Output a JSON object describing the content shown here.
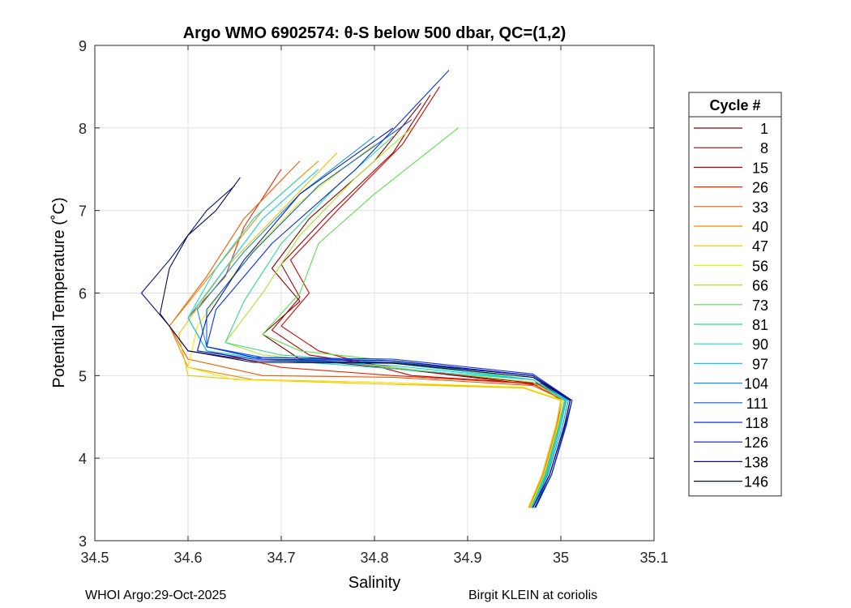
{
  "chart_data": {
    "type": "line",
    "title": "Argo WMO 6902574: θ-S below 500 dbar,  QC=(1,2)",
    "xlabel": "Salinity",
    "ylabel": "Potential Temperature (˚C)",
    "xlim": [
      34.5,
      35.1
    ],
    "ylim": [
      3,
      9
    ],
    "xticks": [
      "34.5",
      "34.6",
      "34.7",
      "34.8",
      "34.9",
      "35",
      "35.1"
    ],
    "yticks": [
      "3",
      "4",
      "5",
      "6",
      "7",
      "8",
      "9"
    ],
    "grid": true,
    "legend": {
      "title": "Cycle #",
      "placement": "outside-right",
      "entries": [
        {
          "label": "1",
          "color": "#800000"
        },
        {
          "label": "8",
          "color": "#a50000"
        },
        {
          "label": "15",
          "color": "#cc0000"
        },
        {
          "label": "26",
          "color": "#e62a00"
        },
        {
          "label": "33",
          "color": "#ef5a00"
        },
        {
          "label": "40",
          "color": "#f08a00"
        },
        {
          "label": "47",
          "color": "#f2c200"
        },
        {
          "label": "56",
          "color": "#f5eb00"
        },
        {
          "label": "66",
          "color": "#a8e62e"
        },
        {
          "label": "73",
          "color": "#5cdc4a"
        },
        {
          "label": "81",
          "color": "#2ed88a"
        },
        {
          "label": "90",
          "color": "#1ed6c8"
        },
        {
          "label": "97",
          "color": "#18c8ee"
        },
        {
          "label": "104",
          "color": "#1090dc"
        },
        {
          "label": "111",
          "color": "#0a5ed6"
        },
        {
          "label": "118",
          "color": "#0a2ee0"
        },
        {
          "label": "126",
          "color": "#0a14b8"
        },
        {
          "label": "138",
          "color": "#08107a"
        },
        {
          "label": "146",
          "color": "#060a4a"
        }
      ]
    },
    "series": [
      {
        "name": "1",
        "color": "#800000",
        "x": [
          34.97,
          34.985,
          35.0,
          35.005,
          34.98,
          34.85,
          34.72,
          34.68,
          34.72,
          34.69,
          34.73,
          34.8,
          34.85
        ],
        "y": [
          3.4,
          3.8,
          4.4,
          4.7,
          4.9,
          5.05,
          5.2,
          5.5,
          5.9,
          6.3,
          6.9,
          7.6,
          8.3
        ]
      },
      {
        "name": "8",
        "color": "#a50000",
        "x": [
          34.968,
          34.983,
          34.998,
          35.004,
          34.978,
          34.85,
          34.73,
          34.69,
          34.72,
          34.7,
          34.75,
          34.82,
          34.86
        ],
        "y": [
          3.4,
          3.8,
          4.4,
          4.7,
          4.88,
          5.05,
          5.25,
          5.55,
          5.95,
          6.35,
          6.95,
          7.7,
          8.4
        ]
      },
      {
        "name": "15",
        "color": "#cc0000",
        "x": [
          34.966,
          34.98,
          34.995,
          35.0,
          34.975,
          34.84,
          34.74,
          34.7,
          34.73,
          34.71,
          34.76,
          34.83,
          34.87
        ],
        "y": [
          3.4,
          3.8,
          4.4,
          4.7,
          4.9,
          5.0,
          5.3,
          5.6,
          6.0,
          6.4,
          7.0,
          7.8,
          8.5
        ]
      },
      {
        "name": "26",
        "color": "#e62a00",
        "x": [
          34.967,
          34.982,
          34.996,
          35.002,
          34.97,
          34.82,
          34.7,
          34.62,
          34.6,
          34.64,
          34.66,
          34.7
        ],
        "y": [
          3.4,
          3.8,
          4.4,
          4.7,
          4.9,
          5.0,
          5.1,
          5.3,
          5.7,
          6.2,
          6.8,
          7.5
        ]
      },
      {
        "name": "33",
        "color": "#ef5a00",
        "x": [
          34.968,
          34.984,
          34.998,
          35.004,
          34.97,
          34.82,
          34.68,
          34.6,
          34.58,
          34.62,
          34.66,
          34.72
        ],
        "y": [
          3.4,
          3.8,
          4.4,
          4.7,
          4.88,
          4.98,
          5.0,
          5.2,
          5.6,
          6.2,
          6.9,
          7.6
        ]
      },
      {
        "name": "40",
        "color": "#f08a00",
        "x": [
          34.966,
          34.981,
          34.996,
          35.0,
          34.96,
          34.8,
          34.67,
          34.6,
          34.58,
          34.63,
          34.68,
          34.74
        ],
        "y": [
          3.4,
          3.8,
          4.4,
          4.7,
          4.85,
          4.92,
          4.95,
          5.1,
          5.6,
          6.3,
          7.0,
          7.6
        ]
      },
      {
        "name": "47",
        "color": "#f2c200",
        "x": [
          34.965,
          34.98,
          34.995,
          35.0,
          34.96,
          34.8,
          34.66,
          34.6,
          34.59,
          34.64,
          34.7,
          34.76
        ],
        "y": [
          3.4,
          3.8,
          4.4,
          4.7,
          4.85,
          4.9,
          4.95,
          5.0,
          5.5,
          6.3,
          7.0,
          7.7
        ]
      },
      {
        "name": "56",
        "color": "#f5eb00",
        "x": [
          34.967,
          34.982,
          34.997,
          35.002,
          34.96,
          34.8,
          34.65,
          34.6,
          34.61,
          34.66,
          34.72,
          34.8
        ],
        "y": [
          3.4,
          3.8,
          4.4,
          4.7,
          4.86,
          4.92,
          4.95,
          5.1,
          5.6,
          6.4,
          7.1,
          7.8
        ]
      },
      {
        "name": "66",
        "color": "#a8e62e",
        "x": [
          34.968,
          34.984,
          34.999,
          35.004,
          34.97,
          34.82,
          34.68,
          34.64,
          34.68,
          34.72,
          34.78,
          34.84
        ],
        "y": [
          3.4,
          3.8,
          4.4,
          4.7,
          4.92,
          5.1,
          5.25,
          5.4,
          6.0,
          6.7,
          7.4,
          8.0
        ]
      },
      {
        "name": "73",
        "color": "#5cdc4a",
        "x": [
          34.97,
          34.985,
          35.0,
          35.006,
          34.97,
          34.84,
          34.72,
          34.68,
          34.72,
          34.74,
          34.8,
          34.89
        ],
        "y": [
          3.4,
          3.8,
          4.4,
          4.7,
          4.95,
          5.15,
          5.3,
          5.5,
          6.0,
          6.6,
          7.2,
          8.0
        ]
      },
      {
        "name": "81",
        "color": "#2ed88a",
        "x": [
          34.969,
          34.984,
          34.999,
          35.005,
          34.97,
          34.82,
          34.7,
          34.64,
          34.66,
          34.7,
          34.76,
          34.82
        ],
        "y": [
          3.4,
          3.8,
          4.4,
          4.7,
          4.95,
          5.15,
          5.25,
          5.4,
          5.9,
          6.6,
          7.3,
          7.9
        ]
      },
      {
        "name": "90",
        "color": "#1ed6c8",
        "x": [
          34.968,
          34.983,
          34.998,
          35.004,
          34.97,
          34.8,
          34.68,
          34.62,
          34.6,
          34.63,
          34.67,
          34.72
        ],
        "y": [
          3.4,
          3.8,
          4.4,
          4.7,
          4.95,
          5.1,
          5.2,
          5.3,
          5.7,
          6.3,
          6.9,
          7.4
        ]
      },
      {
        "name": "97",
        "color": "#18c8ee",
        "x": [
          34.969,
          34.985,
          35.0,
          35.006,
          34.97,
          34.82,
          34.68,
          34.62,
          34.6,
          34.64,
          34.68,
          34.74
        ],
        "y": [
          3.4,
          3.8,
          4.4,
          4.7,
          4.95,
          5.12,
          5.2,
          5.3,
          5.7,
          6.3,
          6.9,
          7.5
        ]
      },
      {
        "name": "104",
        "color": "#1090dc",
        "x": [
          34.97,
          34.986,
          35.002,
          35.008,
          34.97,
          34.82,
          34.68,
          34.62,
          34.61,
          34.66,
          34.72,
          34.8
        ],
        "y": [
          3.4,
          3.8,
          4.4,
          4.7,
          4.98,
          5.15,
          5.2,
          5.35,
          5.8,
          6.5,
          7.2,
          7.9
        ]
      },
      {
        "name": "111",
        "color": "#0a5ed6",
        "x": [
          34.972,
          34.988,
          35.004,
          35.01,
          34.97,
          34.82,
          34.68,
          34.62,
          34.62,
          34.67,
          34.74,
          34.84
        ],
        "y": [
          3.4,
          3.8,
          4.4,
          4.7,
          5.0,
          5.18,
          5.22,
          5.35,
          5.8,
          6.5,
          7.3,
          8.1
        ]
      },
      {
        "name": "118",
        "color": "#0a2ee0",
        "x": [
          34.973,
          34.99,
          35.006,
          35.012,
          34.97,
          34.82,
          34.67,
          34.62,
          34.63,
          34.69,
          34.78,
          34.88
        ],
        "y": [
          3.4,
          3.8,
          4.4,
          4.7,
          5.02,
          5.2,
          5.22,
          5.35,
          5.8,
          6.6,
          7.5,
          8.7
        ]
      },
      {
        "name": "126",
        "color": "#0a14b8",
        "x": [
          34.972,
          34.99,
          35.005,
          35.012,
          34.97,
          34.82,
          34.67,
          34.61,
          34.62,
          34.66,
          34.72,
          34.82
        ],
        "y": [
          3.4,
          3.8,
          4.4,
          4.7,
          5.0,
          5.18,
          5.2,
          5.3,
          5.7,
          6.4,
          7.2,
          8.0
        ]
      },
      {
        "name": "138",
        "color": "#08107a",
        "x": [
          34.97,
          34.988,
          35.004,
          35.01,
          34.97,
          34.82,
          34.67,
          34.6,
          34.58,
          34.55,
          34.58,
          34.6,
          34.62,
          34.65
        ],
        "y": [
          3.4,
          3.8,
          4.4,
          4.7,
          5.0,
          5.16,
          5.18,
          5.3,
          5.6,
          6.0,
          6.4,
          6.7,
          7.0,
          7.3
        ]
      },
      {
        "name": "146",
        "color": "#060a4a",
        "x": [
          34.97,
          34.988,
          35.004,
          35.01,
          34.97,
          34.82,
          34.67,
          34.6,
          34.57,
          34.58,
          34.6,
          34.63,
          34.656
        ],
        "y": [
          3.4,
          3.8,
          4.4,
          4.7,
          4.98,
          5.15,
          5.16,
          5.3,
          5.75,
          6.3,
          6.7,
          7.0,
          7.4
        ]
      }
    ]
  },
  "footer": {
    "left": "WHOI Argo:29-Oct-2025",
    "right": "Birgit KLEIN at coriolis"
  }
}
